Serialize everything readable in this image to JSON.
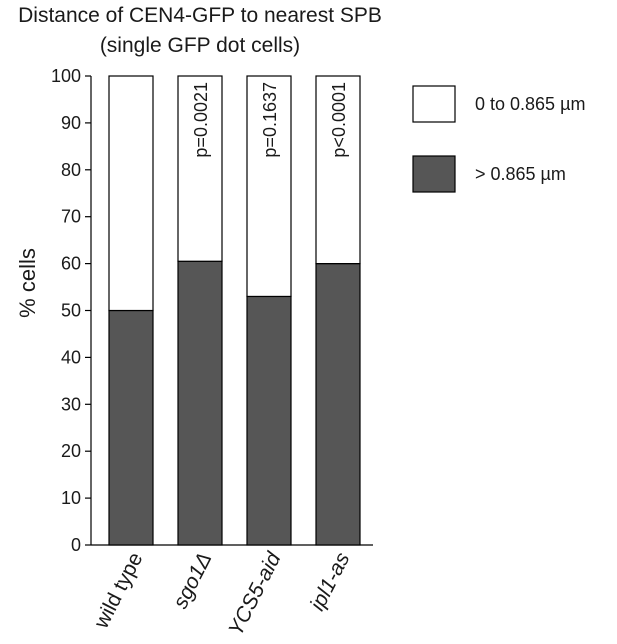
{
  "chart_data": {
    "type": "bar",
    "stacked": true,
    "title": "Distance of CEN4-GFP to nearest SPB",
    "subtitle": "(single GFP dot cells)",
    "ylabel": "% cells",
    "xlabel": "",
    "ylim": [
      0,
      100
    ],
    "yticks": [
      0,
      10,
      20,
      30,
      40,
      50,
      60,
      70,
      80,
      90,
      100
    ],
    "categories": [
      "wild type",
      "sgo1Δ",
      "YCS5-aid",
      "ipl1-as"
    ],
    "series": [
      {
        "name": "> 0.865 µm",
        "color": "#565656",
        "values": [
          50,
          60.5,
          53,
          60
        ]
      },
      {
        "name": "0 to 0.865 µm",
        "color": "#ffffff",
        "values": [
          50,
          39.5,
          47,
          40
        ]
      }
    ],
    "annotations": [
      "",
      "p=0.0021",
      "p=0.1637",
      "p<0.0001"
    ],
    "legend": {
      "placement": "right",
      "entries": [
        "0 to 0.865 µm",
        "> 0.865 µm"
      ]
    },
    "grid": false
  }
}
